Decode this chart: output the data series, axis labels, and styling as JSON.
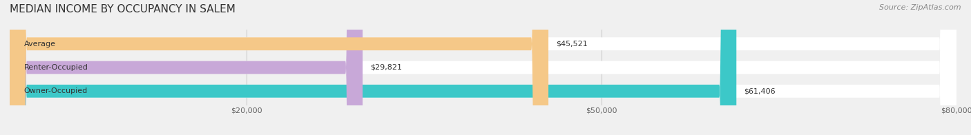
{
  "title": "MEDIAN INCOME BY OCCUPANCY IN SALEM",
  "source": "Source: ZipAtlas.com",
  "categories": [
    "Owner-Occupied",
    "Renter-Occupied",
    "Average"
  ],
  "values": [
    61406,
    29821,
    45521
  ],
  "labels": [
    "$61,406",
    "$29,821",
    "$45,521"
  ],
  "bar_colors": [
    "#3CC8C8",
    "#C8A8D8",
    "#F5C888"
  ],
  "background_color": "#f0f0f0",
  "xlim": [
    0,
    80000
  ],
  "xticks": [
    20000,
    50000,
    80000
  ],
  "xticklabels": [
    "$20,000",
    "$50,000",
    "$80,000"
  ],
  "title_fontsize": 11,
  "source_fontsize": 8,
  "label_fontsize": 8,
  "tick_fontsize": 8,
  "bar_height": 0.55
}
